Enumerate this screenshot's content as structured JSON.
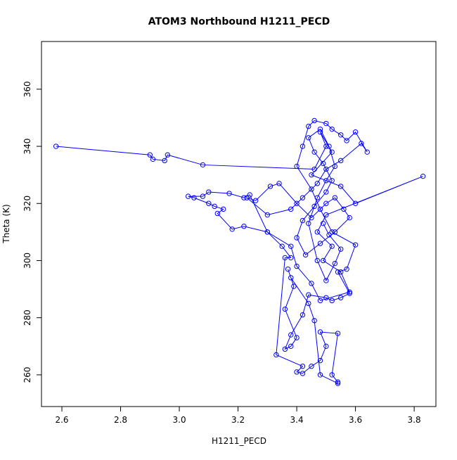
{
  "chart_data": {
    "type": "line",
    "markers": "open-circle",
    "title": "ATOM3 Northbound H1211_PECD",
    "x_label": "H1211_PECD",
    "y_label": "Theta (K)",
    "color": "#0000ff",
    "grid": false,
    "x": [
      2.58,
      2.9,
      2.91,
      2.95,
      2.96,
      3.08,
      3.46,
      3.5,
      3.48,
      3.52,
      3.45,
      3.55,
      3.6,
      3.83,
      3.5,
      3.47,
      3.52,
      3.49,
      3.55,
      3.58,
      3.48,
      3.45,
      3.4,
      3.38,
      3.3,
      3.24,
      3.22,
      3.17,
      3.1,
      3.08,
      3.03,
      3.05,
      3.1,
      3.12,
      3.15,
      3.13,
      3.18,
      3.22,
      3.3,
      3.35,
      3.38,
      3.36,
      3.33,
      3.42,
      3.4,
      3.42,
      3.45,
      3.48,
      3.5,
      3.48,
      3.54,
      3.52,
      3.54,
      3.54,
      3.48,
      3.46,
      3.44,
      3.38,
      3.37,
      3.39,
      3.36,
      3.4,
      3.38,
      3.36,
      3.38,
      3.42,
      3.44,
      3.5,
      3.52,
      3.55,
      3.58,
      3.54,
      3.57,
      3.6,
      3.52,
      3.48,
      3.45,
      3.4,
      3.42,
      3.44,
      3.46,
      3.5,
      3.52,
      3.55,
      3.57,
      3.6,
      3.64,
      3.62,
      3.55,
      3.5,
      3.47,
      3.42,
      3.38,
      3.3,
      3.23,
      3.26,
      3.31,
      3.34,
      3.4,
      3.45,
      3.5,
      3.53,
      3.56,
      3.58,
      3.53,
      3.48,
      3.43,
      3.4,
      3.42,
      3.46,
      3.5,
      3.52,
      3.49,
      3.46,
      3.44,
      3.48,
      3.51,
      3.53,
      3.5,
      3.47,
      3.44,
      3.47,
      3.5,
      3.53,
      3.55,
      3.51,
      3.49
    ],
    "values": [
      340,
      337,
      335.5,
      335,
      337,
      333.5,
      332,
      340,
      345,
      338,
      330,
      326,
      320,
      329.5,
      316,
      310,
      305,
      300,
      296,
      289,
      286,
      292,
      298,
      305,
      310,
      323,
      322,
      323.5,
      324,
      322.5,
      322.5,
      322,
      320,
      319,
      318,
      316.5,
      311,
      312,
      310,
      305,
      301,
      301,
      267,
      263,
      261,
      260.5,
      263,
      265,
      270,
      275,
      274.5,
      260,
      257.5,
      257,
      260,
      279,
      285,
      294,
      297,
      291,
      283,
      273,
      270,
      269,
      274,
      281,
      288,
      287,
      286,
      287,
      288.5,
      296,
      297,
      305.5,
      310,
      318,
      325,
      333,
      340,
      347,
      349,
      348,
      346,
      344,
      342,
      345,
      338,
      341,
      335,
      332,
      327,
      322,
      318,
      316,
      322,
      321,
      326,
      327,
      320,
      315,
      320,
      322,
      318,
      315,
      310,
      306,
      302,
      308,
      314,
      319,
      324,
      328,
      334,
      338,
      343,
      346,
      340,
      333,
      328,
      322,
      313,
      300,
      293,
      299,
      304,
      309,
      313
    ],
    "xlim": [
      2.5305,
      3.874
    ],
    "ylim": [
      248.9,
      376.7
    ],
    "xticks": [
      2.6,
      2.8,
      {
        "value": 3,
        "label": "3.0"
      },
      3.2,
      3.4,
      3.6,
      3.8
    ],
    "yticks": [
      260,
      280,
      300,
      320,
      340,
      360
    ]
  }
}
